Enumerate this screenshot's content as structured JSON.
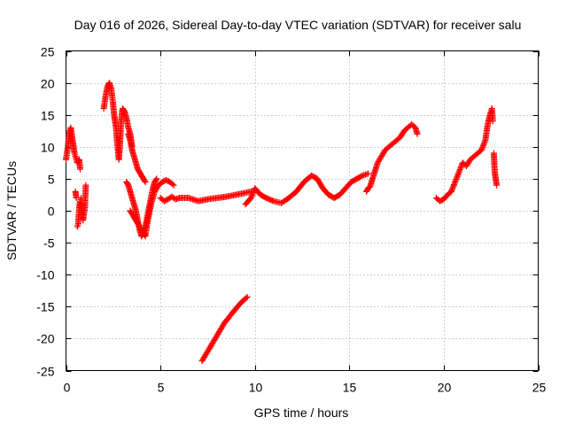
{
  "chart_data": {
    "type": "scatter",
    "title": "Day 016 of 2026, Sidereal Day-to-day VTEC variation (SDTVAR) for receiver salu",
    "xlabel": "GPS time / hours",
    "ylabel": "SDTVAR / TECUs",
    "xlim": [
      0,
      25
    ],
    "ylim": [
      -25,
      25
    ],
    "xticks": [
      0,
      5,
      10,
      15,
      20,
      25
    ],
    "yticks": [
      -25,
      -20,
      -15,
      -10,
      -5,
      0,
      5,
      10,
      15,
      20,
      25
    ],
    "xtick_labels": [
      "0",
      "5",
      "10",
      "15",
      "20",
      "25"
    ],
    "ytick_labels": [
      "-25",
      "-20",
      "-15",
      "-10",
      "-5",
      "0",
      "5",
      "10",
      "15",
      "20",
      "25"
    ],
    "grid": true,
    "marker": "+",
    "color": "#ff0000",
    "series": [
      {
        "name": "SDTVAR",
        "x": [
          0.0,
          0.1,
          0.15,
          0.2,
          0.25,
          0.3,
          0.35,
          0.4,
          0.45,
          0.5,
          0.55,
          0.6,
          0.65,
          0.7,
          0.75,
          0.8,
          0.9,
          1.0,
          1.05,
          0.5,
          0.55,
          0.6,
          0.65,
          0.7,
          0.75,
          0.8,
          2.0,
          2.1,
          2.2,
          2.3,
          2.4,
          2.5,
          2.55,
          2.6,
          2.65,
          2.7,
          2.75,
          2.8,
          2.85,
          2.9,
          2.95,
          3.0,
          3.1,
          3.2,
          3.3,
          3.4,
          3.45,
          3.5,
          3.2,
          3.3,
          3.4,
          3.5,
          3.6,
          3.7,
          3.8,
          3.9,
          4.0,
          4.1,
          4.2,
          4.3,
          4.4,
          4.5,
          4.6,
          4.7,
          4.8,
          3.3,
          3.4,
          3.5,
          3.6,
          3.7,
          3.8,
          3.9,
          4.0,
          4.1,
          4.2,
          3.4,
          3.5,
          3.6,
          3.7,
          3.8,
          3.9,
          4.0,
          4.1,
          4.2,
          4.3,
          4.5,
          4.7,
          4.9,
          5.1,
          5.3,
          5.5,
          5.7,
          5.0,
          5.2,
          5.4,
          5.6,
          5.8,
          6.0,
          6.5,
          7.0,
          7.5,
          8.0,
          8.5,
          9.0,
          9.5,
          9.8,
          9.5,
          9.8,
          10.0,
          10.3,
          10.6,
          11.0,
          11.4,
          11.8,
          12.2,
          12.6,
          13.0,
          13.3,
          13.6,
          13.9,
          14.2,
          14.5,
          14.8,
          15.1,
          15.4,
          15.7,
          16.0,
          15.9,
          16.0,
          16.1,
          16.5,
          16.7,
          16.9,
          17.1,
          17.3,
          17.5,
          17.7,
          17.9,
          18.1,
          18.3,
          18.5,
          18.6,
          7.2,
          7.4,
          7.6,
          7.8,
          8.0,
          8.2,
          8.4,
          8.6,
          8.8,
          9.0,
          9.2,
          9.4,
          9.6,
          19.6,
          19.8,
          20.0,
          20.2,
          20.4,
          20.6,
          20.8,
          21.0,
          21.2,
          21.4,
          21.6,
          21.8,
          22.0,
          22.2,
          22.3,
          22.4,
          22.5,
          22.55,
          22.6,
          22.65,
          22.7,
          22.75,
          22.8
        ],
        "y": [
          8.0,
          10.0,
          11.5,
          12.5,
          13.0,
          12.0,
          11.0,
          10.0,
          9.0,
          8.5,
          8.0,
          7.5,
          7.8,
          8.0,
          6.5,
          1.0,
          -1.5,
          0.5,
          4.0,
          3.0,
          2.0,
          -2.5,
          -2.0,
          0.5,
          1.5,
          2.0,
          16.0,
          18.0,
          19.5,
          20.0,
          19.0,
          16.5,
          15.0,
          14.0,
          13.0,
          11.0,
          9.5,
          8.0,
          10.0,
          13.0,
          15.0,
          16.0,
          15.5,
          14.5,
          13.0,
          12.0,
          11.0,
          10.0,
          4.5,
          4.0,
          3.0,
          2.0,
          1.0,
          0.0,
          -1.5,
          -3.0,
          -4.0,
          -3.5,
          -2.5,
          -1.0,
          0.5,
          2.0,
          3.5,
          4.5,
          5.0,
          12.0,
          11.0,
          9.5,
          8.5,
          7.5,
          6.5,
          6.0,
          5.5,
          5.0,
          4.5,
          0.0,
          -0.5,
          -1.0,
          -1.5,
          -2.0,
          -2.5,
          -3.0,
          -3.5,
          -4.0,
          -2.0,
          1.0,
          3.0,
          4.0,
          4.5,
          4.8,
          4.5,
          4.0,
          2.0,
          1.5,
          1.8,
          2.2,
          1.8,
          2.0,
          2.0,
          1.5,
          1.8,
          2.0,
          2.2,
          2.5,
          2.8,
          3.0,
          1.0,
          2.0,
          3.5,
          2.5,
          2.0,
          1.5,
          1.2,
          2.0,
          3.0,
          4.5,
          5.5,
          5.0,
          3.5,
          2.5,
          2.0,
          2.5,
          3.5,
          4.5,
          5.0,
          5.5,
          5.8,
          3.0,
          3.5,
          3.8,
          7.5,
          8.5,
          9.5,
          10.0,
          10.5,
          11.0,
          11.5,
          12.5,
          13.0,
          13.5,
          13.0,
          12.0,
          -23.5,
          -22.5,
          -21.5,
          -20.5,
          -19.5,
          -18.5,
          -17.5,
          -16.8,
          -16.0,
          -15.3,
          -14.6,
          -14.0,
          -13.5,
          2.0,
          1.5,
          1.8,
          2.5,
          3.0,
          4.5,
          6.0,
          7.5,
          7.0,
          8.0,
          8.5,
          9.0,
          9.5,
          11.0,
          13.0,
          14.5,
          15.5,
          16.0,
          14.0,
          9.0,
          6.0,
          5.0,
          4.0
        ]
      }
    ]
  }
}
